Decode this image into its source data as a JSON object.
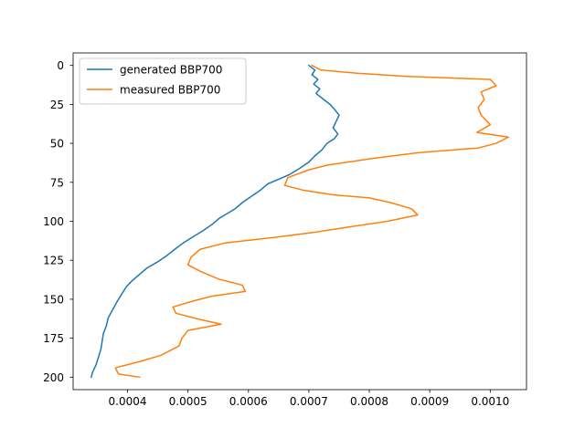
{
  "chart_data": {
    "type": "line",
    "title": "",
    "xlabel": "",
    "ylabel": "",
    "xlim": [
      0.00031,
      0.00106
    ],
    "ylim": [
      208,
      -8
    ],
    "y_inverted": true,
    "grid": false,
    "legend_position": "upper-left",
    "x_ticks": [
      {
        "value": 0.0004,
        "label": "0.0004"
      },
      {
        "value": 0.0005,
        "label": "0.0005"
      },
      {
        "value": 0.0006,
        "label": "0.0006"
      },
      {
        "value": 0.0007,
        "label": "0.0007"
      },
      {
        "value": 0.0008,
        "label": "0.0008"
      },
      {
        "value": 0.0009,
        "label": "0.0009"
      },
      {
        "value": 0.001,
        "label": "0.0010"
      }
    ],
    "y_ticks": [
      {
        "value": 0,
        "label": "0"
      },
      {
        "value": 25,
        "label": "25"
      },
      {
        "value": 50,
        "label": "50"
      },
      {
        "value": 75,
        "label": "75"
      },
      {
        "value": 100,
        "label": "100"
      },
      {
        "value": 125,
        "label": "125"
      },
      {
        "value": 150,
        "label": "150"
      },
      {
        "value": 175,
        "label": "175"
      },
      {
        "value": 200,
        "label": "200"
      }
    ],
    "series": [
      {
        "name": "generated BBP700",
        "color": "#1f77b4",
        "points": [
          [
            0.0007,
            0
          ],
          [
            0.00071,
            3
          ],
          [
            0.000705,
            6
          ],
          [
            0.000715,
            9
          ],
          [
            0.000708,
            12
          ],
          [
            0.000718,
            15
          ],
          [
            0.000712,
            18
          ],
          [
            0.000725,
            22
          ],
          [
            0.000735,
            25
          ],
          [
            0.000742,
            28
          ],
          [
            0.00075,
            32
          ],
          [
            0.000745,
            36
          ],
          [
            0.00074,
            40
          ],
          [
            0.000748,
            44
          ],
          [
            0.000742,
            47
          ],
          [
            0.00073,
            50
          ],
          [
            0.000722,
            54
          ],
          [
            0.00071,
            58
          ],
          [
            0.0007,
            62
          ],
          [
            0.000685,
            66
          ],
          [
            0.000668,
            70
          ],
          [
            0.00065,
            73
          ],
          [
            0.000632,
            76
          ],
          [
            0.00062,
            80
          ],
          [
            0.000605,
            84
          ],
          [
            0.00059,
            88
          ],
          [
            0.000578,
            92
          ],
          [
            0.000565,
            95
          ],
          [
            0.000552,
            98
          ],
          [
            0.00054,
            102
          ],
          [
            0.000525,
            106
          ],
          [
            0.000508,
            110
          ],
          [
            0.000492,
            114
          ],
          [
            0.000478,
            118
          ],
          [
            0.000465,
            122
          ],
          [
            0.00045,
            126
          ],
          [
            0.000432,
            130
          ],
          [
            0.00042,
            134
          ],
          [
            0.000408,
            138
          ],
          [
            0.000398,
            142
          ],
          [
            0.00039,
            147
          ],
          [
            0.000382,
            152
          ],
          [
            0.000375,
            157
          ],
          [
            0.000368,
            162
          ],
          [
            0.000365,
            167
          ],
          [
            0.00036,
            172
          ],
          [
            0.000358,
            177
          ],
          [
            0.000356,
            182
          ],
          [
            0.000352,
            187
          ],
          [
            0.000348,
            192
          ],
          [
            0.000342,
            197
          ],
          [
            0.00034,
            200
          ]
        ]
      },
      {
        "name": "measured BBP700",
        "color": "#ff7f0e",
        "points": [
          [
            0.000705,
            0
          ],
          [
            0.00072,
            3
          ],
          [
            0.00078,
            5
          ],
          [
            0.00086,
            7
          ],
          [
            0.00093,
            8
          ],
          [
            0.001,
            9
          ],
          [
            0.00101,
            13
          ],
          [
            0.000985,
            17
          ],
          [
            0.00099,
            22
          ],
          [
            0.00098,
            27
          ],
          [
            0.000985,
            32
          ],
          [
            0.001,
            38
          ],
          [
            0.000978,
            43
          ],
          [
            0.00103,
            46
          ],
          [
            0.00101,
            50
          ],
          [
            0.00098,
            53
          ],
          [
            0.00088,
            56
          ],
          [
            0.0008,
            60
          ],
          [
            0.00073,
            64
          ],
          [
            0.0007,
            67
          ],
          [
            0.000665,
            72
          ],
          [
            0.00066,
            77
          ],
          [
            0.00069,
            80
          ],
          [
            0.00074,
            83
          ],
          [
            0.0008,
            85
          ],
          [
            0.000835,
            88
          ],
          [
            0.00087,
            92
          ],
          [
            0.00088,
            96
          ],
          [
            0.00083,
            100
          ],
          [
            0.00076,
            104
          ],
          [
            0.00071,
            107
          ],
          [
            0.00065,
            110
          ],
          [
            0.00056,
            114
          ],
          [
            0.00052,
            118
          ],
          [
            0.000505,
            123
          ],
          [
            0.0005,
            128
          ],
          [
            0.00052,
            132
          ],
          [
            0.00055,
            137
          ],
          [
            0.00059,
            141
          ],
          [
            0.000595,
            145
          ],
          [
            0.00054,
            148
          ],
          [
            0.00051,
            151
          ],
          [
            0.000475,
            155
          ],
          [
            0.00048,
            159
          ],
          [
            0.00052,
            163
          ],
          [
            0.000555,
            166
          ],
          [
            0.0005,
            170
          ],
          [
            0.00049,
            175
          ],
          [
            0.000485,
            180
          ],
          [
            0.000455,
            186
          ],
          [
            0.00042,
            190
          ],
          [
            0.00038,
            194
          ],
          [
            0.000385,
            198
          ],
          [
            0.00042,
            200
          ]
        ]
      }
    ]
  }
}
